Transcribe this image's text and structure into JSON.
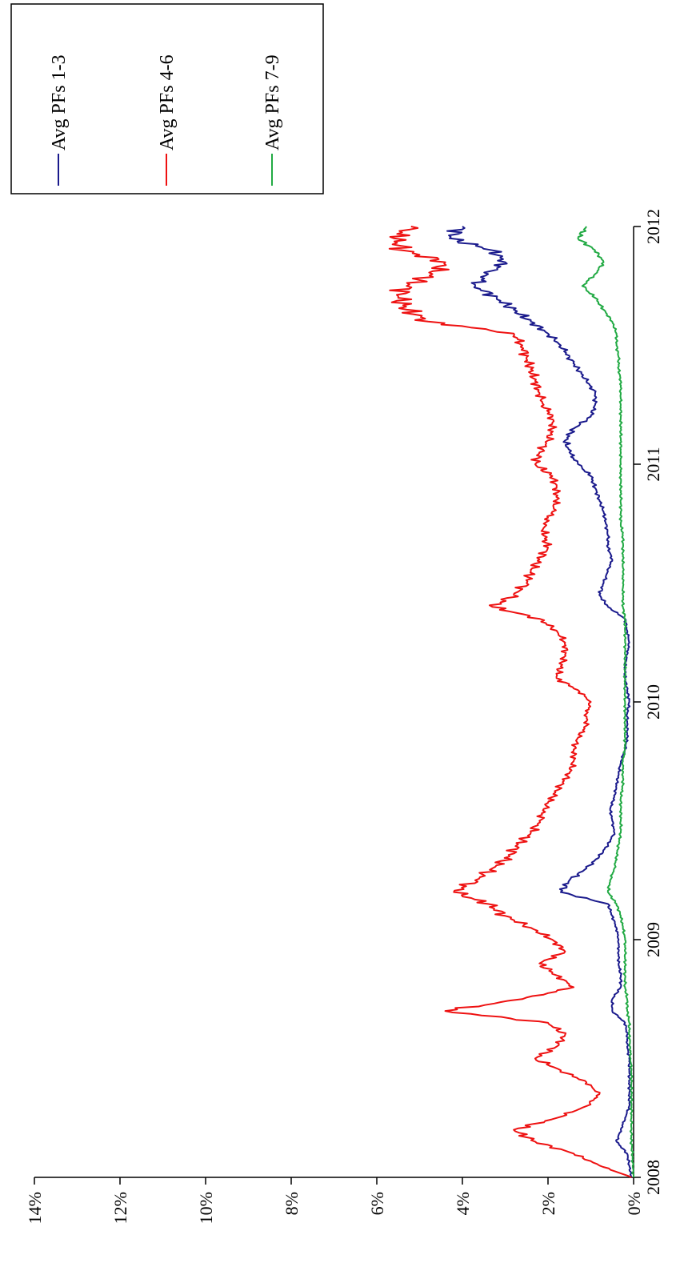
{
  "chart_data": {
    "type": "line",
    "orientation": "rotated-90-clockwise",
    "title": "",
    "xlabel": "",
    "ylabel": "",
    "xlim": [
      2008.0,
      2012.0
    ],
    "ylim": [
      0,
      14
    ],
    "x_ticks": [
      "2008",
      "2009",
      "2010",
      "2011",
      "2012"
    ],
    "y_ticks": [
      "0%",
      "2%",
      "4%",
      "6%",
      "8%",
      "10%",
      "12%",
      "14%"
    ],
    "grid": false,
    "legend_position": "top-right",
    "x": [
      2008.0,
      2008.05,
      2008.1,
      2008.15,
      2008.2,
      2008.25,
      2008.3,
      2008.35,
      2008.4,
      2008.45,
      2008.5,
      2008.55,
      2008.6,
      2008.65,
      2008.7,
      2008.75,
      2008.8,
      2008.85,
      2008.9,
      2008.95,
      2009.0,
      2009.05,
      2009.1,
      2009.15,
      2009.2,
      2009.25,
      2009.3,
      2009.35,
      2009.4,
      2009.45,
      2009.5,
      2009.55,
      2009.6,
      2009.65,
      2009.7,
      2009.75,
      2009.8,
      2009.85,
      2009.9,
      2009.95,
      2010.0,
      2010.05,
      2010.1,
      2010.15,
      2010.2,
      2010.25,
      2010.3,
      2010.35,
      2010.4,
      2010.45,
      2010.5,
      2010.55,
      2010.6,
      2010.65,
      2010.7,
      2010.75,
      2010.8,
      2010.85,
      2010.9,
      2010.95,
      2011.0,
      2011.05,
      2011.1,
      2011.15,
      2011.2,
      2011.25,
      2011.3,
      2011.35,
      2011.4,
      2011.45,
      2011.5,
      2011.55,
      2011.6,
      2011.65,
      2011.7,
      2011.75,
      2011.8,
      2011.85,
      2011.9,
      2011.95,
      2012.0
    ],
    "series": [
      {
        "name": "Avg PFs 1-3",
        "color": "#1a1a8c",
        "values": [
          0.05,
          0.1,
          0.15,
          0.4,
          0.3,
          0.2,
          0.1,
          0.1,
          0.1,
          0.1,
          0.1,
          0.15,
          0.15,
          0.2,
          0.5,
          0.5,
          0.3,
          0.3,
          0.35,
          0.35,
          0.35,
          0.4,
          0.5,
          0.6,
          1.7,
          1.5,
          1.1,
          0.8,
          0.6,
          0.45,
          0.5,
          0.55,
          0.45,
          0.4,
          0.35,
          0.3,
          0.2,
          0.15,
          0.15,
          0.15,
          0.1,
          0.15,
          0.2,
          0.2,
          0.15,
          0.1,
          0.15,
          0.2,
          0.6,
          0.8,
          0.7,
          0.6,
          0.5,
          0.6,
          0.6,
          0.65,
          0.7,
          0.8,
          0.9,
          1.0,
          1.3,
          1.5,
          1.6,
          1.4,
          1.0,
          0.9,
          0.9,
          1.1,
          1.3,
          1.5,
          1.7,
          2.0,
          2.4,
          2.8,
          3.2,
          3.7,
          3.4,
          3.0,
          3.3,
          4.3,
          4.0
        ]
      },
      {
        "name": "Avg PFs 4-6",
        "color": "#ee1111",
        "values": [
          0.05,
          0.8,
          1.4,
          2.3,
          2.8,
          1.8,
          1.1,
          0.8,
          1.1,
          1.7,
          2.3,
          1.8,
          1.6,
          2.0,
          4.4,
          2.6,
          1.4,
          1.8,
          2.2,
          1.6,
          1.9,
          2.4,
          3.0,
          3.4,
          4.2,
          3.7,
          3.3,
          2.9,
          2.7,
          2.4,
          2.2,
          2.1,
          1.9,
          1.7,
          1.5,
          1.4,
          1.4,
          1.3,
          1.1,
          1.1,
          1.0,
          1.3,
          1.8,
          1.7,
          1.6,
          1.6,
          1.8,
          2.2,
          3.3,
          2.8,
          2.5,
          2.4,
          2.2,
          2.0,
          2.1,
          2.1,
          1.9,
          1.8,
          1.8,
          1.9,
          2.3,
          2.2,
          2.0,
          1.9,
          1.9,
          2.1,
          2.2,
          2.3,
          2.4,
          2.5,
          2.6,
          2.8,
          4.8,
          5.3,
          5.5,
          5.3,
          4.7,
          4.4,
          5.4,
          5.6,
          5.2
        ]
      },
      {
        "name": "Avg PFs 7-9",
        "color": "#22aa44",
        "values": [
          0.0,
          0.02,
          0.03,
          0.05,
          0.05,
          0.05,
          0.05,
          0.05,
          0.05,
          0.05,
          0.07,
          0.08,
          0.1,
          0.1,
          0.15,
          0.15,
          0.2,
          0.2,
          0.2,
          0.2,
          0.2,
          0.25,
          0.3,
          0.4,
          0.6,
          0.55,
          0.45,
          0.4,
          0.35,
          0.3,
          0.3,
          0.3,
          0.3,
          0.25,
          0.25,
          0.25,
          0.2,
          0.2,
          0.2,
          0.2,
          0.2,
          0.2,
          0.2,
          0.2,
          0.2,
          0.2,
          0.2,
          0.2,
          0.25,
          0.25,
          0.25,
          0.25,
          0.25,
          0.25,
          0.25,
          0.3,
          0.3,
          0.3,
          0.3,
          0.3,
          0.3,
          0.3,
          0.3,
          0.3,
          0.3,
          0.3,
          0.3,
          0.3,
          0.35,
          0.35,
          0.4,
          0.4,
          0.5,
          0.7,
          0.9,
          1.2,
          0.9,
          0.7,
          0.9,
          1.3,
          1.1
        ]
      }
    ]
  }
}
